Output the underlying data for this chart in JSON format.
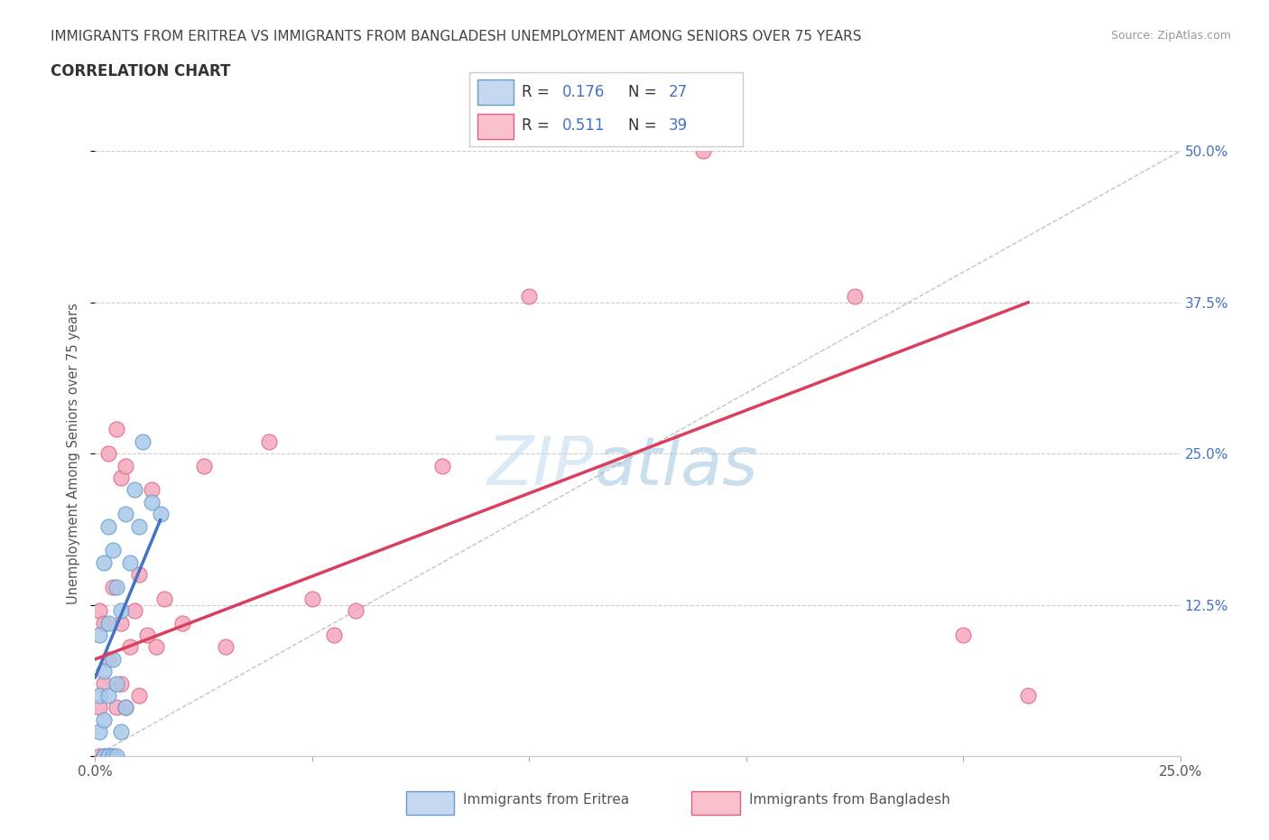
{
  "title_line1": "IMMIGRANTS FROM ERITREA VS IMMIGRANTS FROM BANGLADESH UNEMPLOYMENT AMONG SENIORS OVER 75 YEARS",
  "title_line2": "CORRELATION CHART",
  "source": "Source: ZipAtlas.com",
  "ylabel": "Unemployment Among Seniors over 75 years",
  "xlim": [
    0,
    0.25
  ],
  "ylim": [
    0,
    0.5
  ],
  "xticks": [
    0.0,
    0.05,
    0.1,
    0.15,
    0.2,
    0.25
  ],
  "yticks": [
    0.0,
    0.125,
    0.25,
    0.375,
    0.5
  ],
  "eritrea_R": 0.176,
  "eritrea_N": 27,
  "bangladesh_R": 0.511,
  "bangladesh_N": 39,
  "eritrea_dot_color": "#a8c8e8",
  "bangladesh_dot_color": "#f4a8bc",
  "eritrea_edge_color": "#6699cc",
  "bangladesh_edge_color": "#e06080",
  "eritrea_line_color": "#4472c4",
  "bangladesh_line_color": "#d94060",
  "ref_line_color": "#aaaaaa",
  "legend_eritrea_fill": "#c5d8f0",
  "legend_bangladesh_fill": "#f9c0cc",
  "eritrea_x": [
    0.001,
    0.001,
    0.001,
    0.002,
    0.002,
    0.002,
    0.002,
    0.003,
    0.003,
    0.003,
    0.003,
    0.004,
    0.004,
    0.004,
    0.005,
    0.005,
    0.005,
    0.006,
    0.006,
    0.007,
    0.007,
    0.008,
    0.009,
    0.01,
    0.011,
    0.013,
    0.015
  ],
  "eritrea_y": [
    0.02,
    0.05,
    0.1,
    0.0,
    0.03,
    0.07,
    0.16,
    0.0,
    0.05,
    0.11,
    0.19,
    0.0,
    0.08,
    0.17,
    0.0,
    0.06,
    0.14,
    0.02,
    0.12,
    0.04,
    0.2,
    0.16,
    0.22,
    0.19,
    0.26,
    0.21,
    0.2
  ],
  "bangladesh_x": [
    0.001,
    0.001,
    0.001,
    0.002,
    0.002,
    0.002,
    0.003,
    0.003,
    0.003,
    0.004,
    0.004,
    0.005,
    0.005,
    0.006,
    0.006,
    0.006,
    0.007,
    0.007,
    0.008,
    0.009,
    0.01,
    0.01,
    0.012,
    0.013,
    0.014,
    0.016,
    0.02,
    0.025,
    0.03,
    0.04,
    0.05,
    0.055,
    0.06,
    0.08,
    0.1,
    0.14,
    0.175,
    0.2,
    0.215
  ],
  "bangladesh_y": [
    0.0,
    0.04,
    0.12,
    0.0,
    0.06,
    0.11,
    0.0,
    0.08,
    0.25,
    0.0,
    0.14,
    0.04,
    0.27,
    0.06,
    0.11,
    0.23,
    0.04,
    0.24,
    0.09,
    0.12,
    0.05,
    0.15,
    0.1,
    0.22,
    0.09,
    0.13,
    0.11,
    0.24,
    0.09,
    0.26,
    0.13,
    0.1,
    0.12,
    0.24,
    0.38,
    0.5,
    0.38,
    0.1,
    0.05
  ],
  "eritrea_line_x": [
    0.0,
    0.015
  ],
  "eritrea_line_y": [
    0.065,
    0.195
  ],
  "bangladesh_line_x": [
    0.0,
    0.215
  ],
  "bangladesh_line_y": [
    0.08,
    0.375
  ]
}
